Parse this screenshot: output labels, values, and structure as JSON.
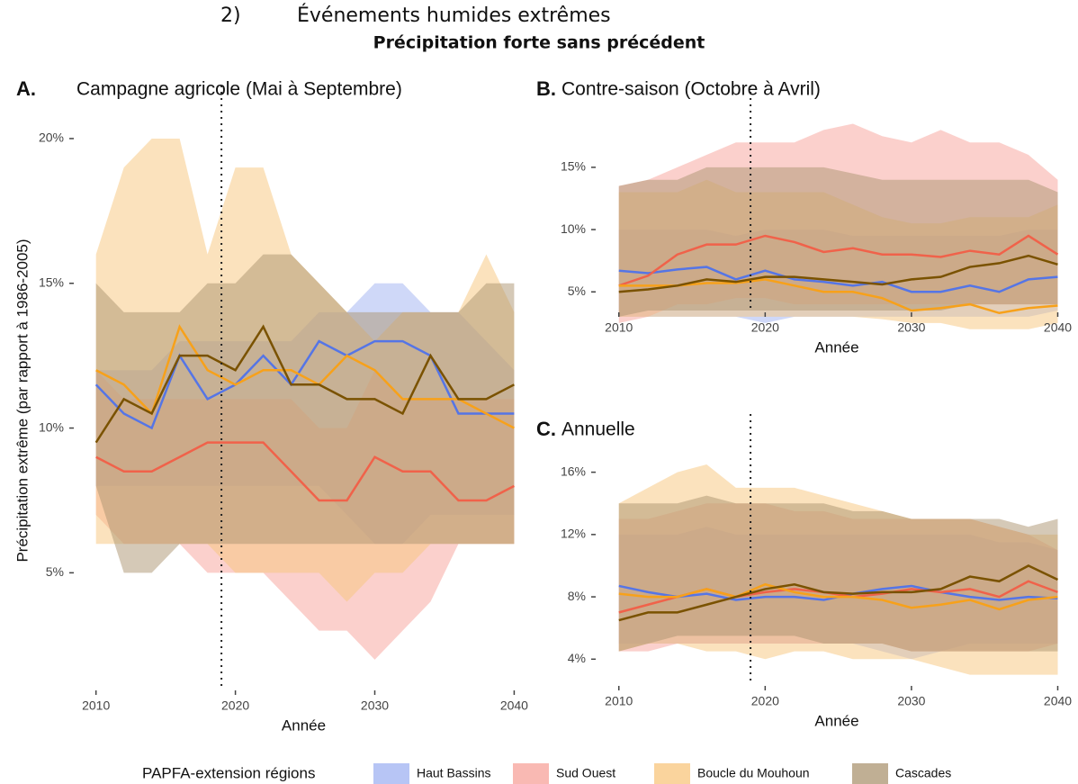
{
  "header": {
    "number": "2)",
    "title": "Événements humides extrêmes",
    "subtitle": "Précipitation forte sans précédent"
  },
  "legend_title": "PAPFA-extension régions",
  "chart_data": [
    {
      "type": "line",
      "label": "A.",
      "title": "Campagne agricole (Mai à Septembre)",
      "xlabel": "Année",
      "ylabel": "Précipitation extrême (par rapport à 1986-2005)",
      "x": [
        2010,
        2012,
        2014,
        2016,
        2018,
        2020,
        2022,
        2024,
        2026,
        2028,
        2030,
        2032,
        2034,
        2036,
        2038,
        2040
      ],
      "xlim": [
        2008.6,
        2041.2
      ],
      "xticks": [
        2010,
        2020,
        2030,
        2040
      ],
      "ylim": [
        1,
        20.9
      ],
      "yticks": [
        {
          "value": 5,
          "label": "5%"
        },
        {
          "value": 10,
          "label": "10%"
        },
        {
          "value": 15,
          "label": "15%"
        },
        {
          "value": 20,
          "label": "20%"
        }
      ],
      "vline": 2019,
      "grid": false,
      "series": [
        {
          "name": "Haut Bassins",
          "color": "#5575e6",
          "band_color": "#9fb2f2",
          "values": [
            11.5,
            10.5,
            10,
            12.5,
            11,
            11.5,
            12.5,
            11.5,
            13,
            12.5,
            13,
            13,
            12.5,
            10.5,
            10.5,
            10.5
          ],
          "lower": [
            8,
            8,
            8,
            8,
            8,
            8,
            8,
            8,
            8,
            7,
            6,
            6,
            7,
            7,
            7,
            7
          ],
          "upper": [
            12,
            12,
            12,
            13,
            13,
            13,
            13,
            13,
            14,
            14,
            15,
            15,
            14,
            14,
            13,
            12
          ]
        },
        {
          "name": "Sud Ouest",
          "color": "#f0624a",
          "band_color": "#f7a29a",
          "values": [
            9,
            8.5,
            8.5,
            9,
            9.5,
            9.5,
            9.5,
            8.5,
            7.5,
            7.5,
            9,
            8.5,
            8.5,
            7.5,
            7.5,
            8
          ],
          "lower": [
            7,
            6,
            6,
            6,
            5,
            5,
            5,
            4,
            3,
            3,
            2,
            3,
            4,
            6,
            6,
            6
          ],
          "upper": [
            12,
            11,
            11,
            11,
            11,
            11,
            11,
            11,
            10,
            10,
            12,
            11,
            11,
            11,
            11,
            11
          ]
        },
        {
          "name": "Boucle du Mouhoun",
          "color": "#f7a11a",
          "band_color": "#f8c67c",
          "values": [
            12,
            11.5,
            10.5,
            13.5,
            12,
            11.5,
            12,
            12,
            11.5,
            12.5,
            12,
            11,
            11,
            11,
            10.5,
            10
          ],
          "lower": [
            6,
            6,
            6,
            6,
            6,
            5,
            5,
            5,
            5,
            4,
            5,
            5,
            6,
            6,
            6,
            6
          ],
          "upper": [
            16,
            19,
            20,
            20,
            16,
            19,
            19,
            16,
            15,
            14,
            13,
            14,
            14,
            14,
            16,
            14
          ]
        },
        {
          "name": "Cascades",
          "color": "#7a5200",
          "band_color": "#ab9470",
          "values": [
            9.5,
            11,
            10.5,
            12.5,
            12.5,
            12,
            13.5,
            11.5,
            11.5,
            11,
            11,
            10.5,
            12.5,
            11,
            11,
            11.5
          ],
          "lower": [
            8,
            5,
            5,
            6,
            6,
            6,
            6,
            6,
            6,
            6,
            6,
            6,
            6,
            6,
            6,
            6
          ],
          "upper": [
            15,
            14,
            14,
            14,
            15,
            15,
            16,
            16,
            15,
            14,
            14,
            14,
            14,
            14,
            15,
            15
          ]
        }
      ]
    },
    {
      "type": "line",
      "label": "B.",
      "title": "Contre-saison (Octobre à Avril)",
      "xlabel": "Année",
      "x": [
        2010,
        2012,
        2014,
        2016,
        2018,
        2020,
        2022,
        2024,
        2026,
        2028,
        2030,
        2032,
        2034,
        2036,
        2038,
        2040
      ],
      "xlim": [
        2008.6,
        2041.2
      ],
      "xticks": [
        2010,
        2020,
        2030,
        2040
      ],
      "ylim": [
        3.5,
        19.4
      ],
      "yticks": [
        {
          "value": 5,
          "label": "5%"
        },
        {
          "value": 10,
          "label": "10%"
        },
        {
          "value": 15,
          "label": "15%"
        }
      ],
      "vline": 2019,
      "grid": false,
      "series": [
        {
          "name": "Haut Bassins",
          "color": "#5575e6",
          "band_color": "#9fb2f2",
          "values": [
            6.7,
            6.5,
            6.8,
            7,
            6,
            6.7,
            6,
            5.8,
            5.5,
            5.8,
            5,
            5,
            5.5,
            5,
            6,
            6.2
          ],
          "lower": [
            3,
            3,
            3,
            3,
            3,
            2.5,
            3,
            3,
            3,
            3,
            3,
            3,
            3,
            3,
            3,
            3.5
          ],
          "upper": [
            10,
            10,
            10,
            10,
            9.5,
            10,
            10,
            10,
            9.5,
            9.5,
            9.5,
            9.5,
            9.5,
            9.5,
            10,
            10
          ]
        },
        {
          "name": "Sud Ouest",
          "color": "#f0624a",
          "band_color": "#f7a29a",
          "values": [
            5.5,
            6.3,
            8,
            8.8,
            8.8,
            9.5,
            9,
            8.2,
            8.5,
            8,
            8,
            7.8,
            8.3,
            8,
            9.5,
            8
          ],
          "lower": [
            2.5,
            3,
            4,
            4,
            4.5,
            4.5,
            4,
            4,
            4,
            4,
            4,
            4,
            4,
            4,
            4,
            4
          ],
          "upper": [
            13.5,
            14,
            15,
            16,
            17,
            17,
            17,
            18,
            18.5,
            17.5,
            17,
            18,
            17,
            17,
            16,
            14
          ]
        },
        {
          "name": "Boucle du Mouhoun",
          "color": "#f7a11a",
          "band_color": "#f8c67c",
          "values": [
            5.5,
            5.5,
            5.5,
            5.7,
            5.7,
            6,
            5.5,
            5,
            5,
            4.5,
            3.5,
            3.7,
            4,
            3.3,
            3.7,
            3.9
          ],
          "lower": [
            3,
            3,
            3,
            3,
            3,
            3,
            3,
            3,
            3,
            2.8,
            2.5,
            2.5,
            2,
            2,
            2,
            2.5
          ],
          "upper": [
            13,
            13,
            13,
            14,
            13,
            13,
            13,
            13,
            12,
            11,
            10.5,
            10.5,
            11,
            11,
            11,
            12
          ]
        },
        {
          "name": "Cascades",
          "color": "#7a5200",
          "band_color": "#ab9470",
          "values": [
            5,
            5.2,
            5.5,
            6,
            5.8,
            6.2,
            6.2,
            6,
            5.8,
            5.6,
            6,
            6.2,
            7,
            7.3,
            7.9,
            7.2
          ],
          "lower": [
            3,
            3.5,
            3.5,
            3.5,
            3.5,
            3.5,
            3.5,
            3.5,
            3.5,
            3.5,
            3.5,
            3.5,
            4,
            4,
            4,
            4
          ],
          "upper": [
            13.5,
            14,
            14,
            15,
            15,
            15,
            15,
            15,
            14.5,
            14,
            14,
            14,
            14,
            14,
            14,
            13
          ]
        }
      ]
    },
    {
      "type": "line",
      "label": "C.",
      "title": "Annuelle",
      "xlabel": "Année",
      "x": [
        2010,
        2012,
        2014,
        2016,
        2018,
        2020,
        2022,
        2024,
        2026,
        2028,
        2030,
        2032,
        2034,
        2036,
        2038,
        2040
      ],
      "xlim": [
        2008.6,
        2041.2
      ],
      "xticks": [
        2010,
        2020,
        2030,
        2040
      ],
      "ylim": [
        2.4,
        18
      ],
      "yticks": [
        {
          "value": 4,
          "label": "4%"
        },
        {
          "value": 8,
          "label": "8%"
        },
        {
          "value": 12,
          "label": "12%"
        },
        {
          "value": 16,
          "label": "16%"
        }
      ],
      "vline": 2019,
      "grid": false,
      "series": [
        {
          "name": "Haut Bassins",
          "color": "#5575e6",
          "band_color": "#9fb2f2",
          "values": [
            8.7,
            8.3,
            8,
            8.2,
            7.8,
            8,
            8,
            7.8,
            8.2,
            8.5,
            8.7,
            8.3,
            8,
            7.8,
            8,
            7.9
          ],
          "lower": [
            5,
            5,
            5,
            5,
            5,
            5,
            5,
            5,
            5,
            4.5,
            4,
            4.5,
            5,
            5,
            5,
            5
          ],
          "upper": [
            12,
            12,
            12,
            12.5,
            12,
            12,
            12,
            12,
            12,
            12,
            12,
            12,
            12,
            11.5,
            11.5,
            11
          ]
        },
        {
          "name": "Sud Ouest",
          "color": "#f0624a",
          "band_color": "#f7a29a",
          "values": [
            7,
            7.5,
            8,
            8.5,
            8,
            8.3,
            8.5,
            8.3,
            8,
            8.2,
            8.5,
            8.3,
            8.5,
            8,
            9,
            8.3
          ],
          "lower": [
            4.5,
            4.5,
            5,
            5,
            5,
            5,
            5,
            5,
            5,
            5,
            4.5,
            4.5,
            4.5,
            4.5,
            4.5,
            5
          ],
          "upper": [
            13,
            13,
            13.5,
            14,
            14,
            14,
            13.5,
            13.5,
            13,
            13,
            13,
            13,
            13,
            12.5,
            12,
            11
          ]
        },
        {
          "name": "Boucle du Mouhoun",
          "color": "#f7a11a",
          "band_color": "#f8c67c",
          "values": [
            8.2,
            8,
            8,
            8.5,
            8,
            8.8,
            8.3,
            8,
            8,
            7.8,
            7.3,
            7.5,
            7.8,
            7.2,
            7.8,
            8
          ],
          "lower": [
            4.5,
            5,
            5,
            4.5,
            4.5,
            4,
            4.5,
            4.5,
            4,
            4,
            4,
            3.5,
            3,
            3,
            3,
            3
          ],
          "upper": [
            14,
            15,
            16,
            16.5,
            15,
            15,
            15,
            14.5,
            14,
            13.5,
            13,
            13,
            13,
            12.5,
            12,
            12
          ]
        },
        {
          "name": "Cascades",
          "color": "#7a5200",
          "band_color": "#ab9470",
          "values": [
            6.5,
            7,
            7,
            7.5,
            8,
            8.5,
            8.8,
            8.3,
            8.2,
            8.3,
            8.3,
            8.5,
            9.3,
            9,
            10,
            9.1
          ],
          "lower": [
            4.5,
            5,
            5.5,
            5.5,
            5.5,
            5.5,
            5.5,
            5,
            5,
            5,
            4.5,
            4.5,
            4.5,
            4.5,
            4.5,
            4.5
          ],
          "upper": [
            14,
            14,
            14,
            14.5,
            14,
            14,
            14,
            14,
            13.5,
            13.5,
            13,
            13,
            13,
            13,
            12.5,
            13
          ]
        }
      ]
    }
  ]
}
